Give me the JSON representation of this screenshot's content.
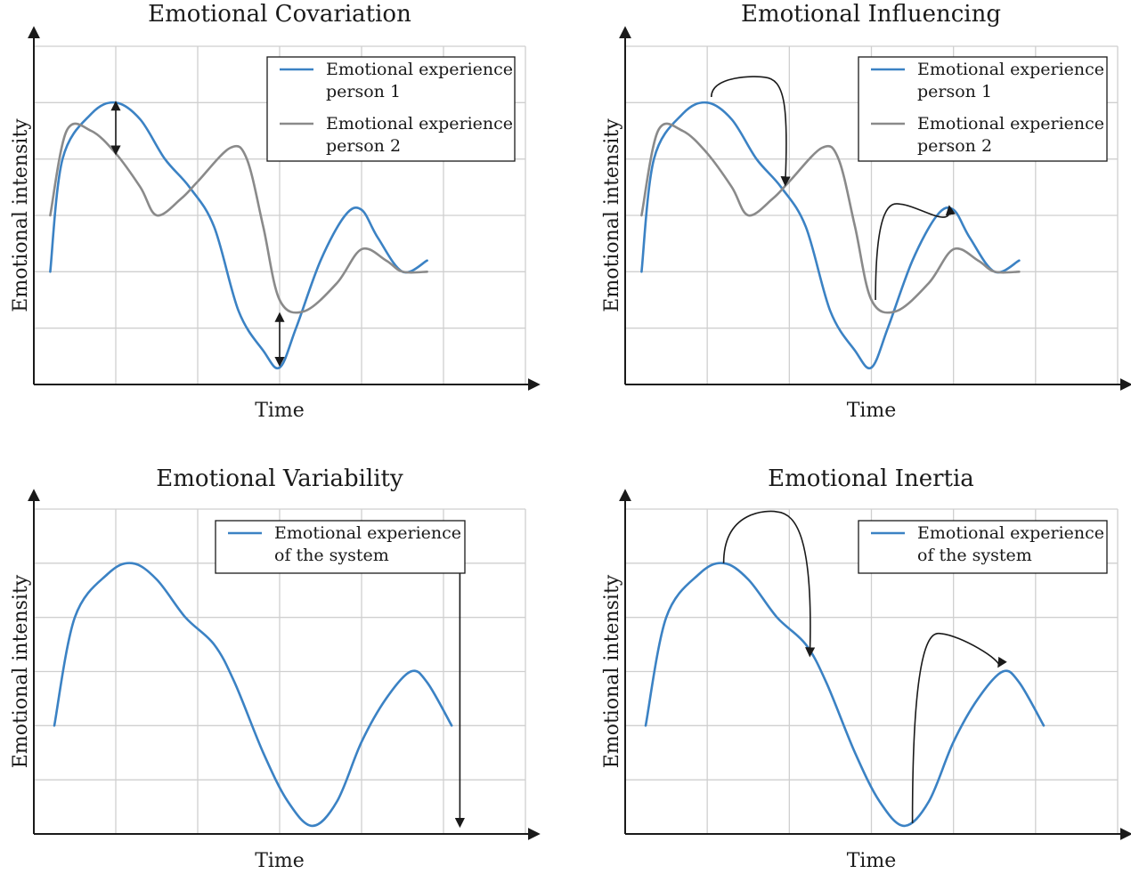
{
  "colors": {
    "person1": "#3b82c4",
    "person2": "#8a8a8a",
    "grid": "#cfcfcf",
    "axis": "#1a1a1a"
  },
  "chart_data": [
    {
      "id": "covariation",
      "type": "line",
      "title": "Emotional Covariation",
      "xlabel": "Time",
      "ylabel": "Emotional intensity",
      "xlim": [
        0,
        6
      ],
      "ylim": [
        0,
        6
      ],
      "grid": true,
      "legend_position": "top-right",
      "series": [
        {
          "name_lines": [
            "Emotional experience",
            "person 1"
          ],
          "color": "#3b82c4",
          "points": [
            [
              0.2,
              2.0
            ],
            [
              0.35,
              4.0
            ],
            [
              0.7,
              4.8
            ],
            [
              1.0,
              5.0
            ],
            [
              1.3,
              4.7
            ],
            [
              1.6,
              4.0
            ],
            [
              1.9,
              3.5
            ],
            [
              2.2,
              2.8
            ],
            [
              2.5,
              1.3
            ],
            [
              2.8,
              0.6
            ],
            [
              3.0,
              0.3
            ],
            [
              3.2,
              1.0
            ],
            [
              3.5,
              2.2
            ],
            [
              3.8,
              3.0
            ],
            [
              4.0,
              3.1
            ],
            [
              4.2,
              2.6
            ],
            [
              4.5,
              2.0
            ],
            [
              4.8,
              2.2
            ]
          ]
        },
        {
          "name_lines": [
            "Emotional experience",
            "person 2"
          ],
          "color": "#8a8a8a",
          "points": [
            [
              0.2,
              3.0
            ],
            [
              0.4,
              4.5
            ],
            [
              0.7,
              4.5
            ],
            [
              1.0,
              4.1
            ],
            [
              1.3,
              3.5
            ],
            [
              1.5,
              3.0
            ],
            [
              1.8,
              3.3
            ],
            [
              2.0,
              3.6
            ],
            [
              2.4,
              4.2
            ],
            [
              2.6,
              4.0
            ],
            [
              2.8,
              2.8
            ],
            [
              3.0,
              1.5
            ],
            [
              3.3,
              1.3
            ],
            [
              3.7,
              1.8
            ],
            [
              4.0,
              2.4
            ],
            [
              4.3,
              2.2
            ],
            [
              4.5,
              2.0
            ],
            [
              4.8,
              2.0
            ]
          ]
        }
      ],
      "arrows": [
        {
          "kind": "double",
          "from": [
            1.0,
            5.0
          ],
          "to": [
            1.0,
            4.1
          ]
        },
        {
          "kind": "double",
          "from": [
            3.0,
            1.25
          ],
          "to": [
            3.0,
            0.35
          ]
        }
      ]
    },
    {
      "id": "influencing",
      "type": "line",
      "title": "Emotional Influencing",
      "xlabel": "Time",
      "ylabel": "Emotional intensity",
      "xlim": [
        0,
        6
      ],
      "ylim": [
        0,
        6
      ],
      "grid": true,
      "legend_position": "top-right",
      "series": [
        {
          "name_lines": [
            "Emotional experience",
            "person 1"
          ],
          "color": "#3b82c4",
          "points": [
            [
              0.2,
              2.0
            ],
            [
              0.35,
              4.0
            ],
            [
              0.7,
              4.8
            ],
            [
              1.0,
              5.0
            ],
            [
              1.3,
              4.7
            ],
            [
              1.6,
              4.0
            ],
            [
              1.9,
              3.5
            ],
            [
              2.2,
              2.8
            ],
            [
              2.5,
              1.3
            ],
            [
              2.8,
              0.6
            ],
            [
              3.0,
              0.3
            ],
            [
              3.2,
              1.0
            ],
            [
              3.5,
              2.2
            ],
            [
              3.8,
              3.0
            ],
            [
              4.0,
              3.1
            ],
            [
              4.2,
              2.6
            ],
            [
              4.5,
              2.0
            ],
            [
              4.8,
              2.2
            ]
          ]
        },
        {
          "name_lines": [
            "Emotional experience",
            "person 2"
          ],
          "color": "#8a8a8a",
          "points": [
            [
              0.2,
              3.0
            ],
            [
              0.4,
              4.5
            ],
            [
              0.7,
              4.5
            ],
            [
              1.0,
              4.1
            ],
            [
              1.3,
              3.5
            ],
            [
              1.5,
              3.0
            ],
            [
              1.8,
              3.3
            ],
            [
              2.0,
              3.6
            ],
            [
              2.4,
              4.2
            ],
            [
              2.6,
              4.0
            ],
            [
              2.8,
              2.8
            ],
            [
              3.0,
              1.5
            ],
            [
              3.3,
              1.3
            ],
            [
              3.7,
              1.8
            ],
            [
              4.0,
              2.4
            ],
            [
              4.3,
              2.2
            ],
            [
              4.5,
              2.0
            ],
            [
              4.8,
              2.0
            ]
          ]
        }
      ],
      "arrows": [
        {
          "kind": "curved",
          "from": [
            1.05,
            5.1
          ],
          "peak": [
            1.7,
            5.45
          ],
          "to": [
            1.95,
            3.55
          ]
        },
        {
          "kind": "curved",
          "from": [
            3.05,
            1.5
          ],
          "peak": [
            3.35,
            3.2
          ],
          "to": [
            3.95,
            3.15
          ]
        }
      ]
    },
    {
      "id": "variability",
      "type": "line",
      "title": "Emotional Variability",
      "xlabel": "Time",
      "ylabel": "Emotional intensity",
      "xlim": [
        0,
        6
      ],
      "ylim": [
        0,
        6
      ],
      "grid": true,
      "legend_position": "top-right",
      "series": [
        {
          "name_lines": [
            "Emotional experience",
            "of the system"
          ],
          "color": "#3b82c4",
          "points": [
            [
              0.25,
              2.0
            ],
            [
              0.5,
              4.0
            ],
            [
              0.9,
              4.8
            ],
            [
              1.2,
              5.0
            ],
            [
              1.5,
              4.7
            ],
            [
              1.85,
              4.0
            ],
            [
              2.2,
              3.5
            ],
            [
              2.45,
              2.8
            ],
            [
              2.8,
              1.5
            ],
            [
              3.1,
              0.6
            ],
            [
              3.4,
              0.15
            ],
            [
              3.7,
              0.6
            ],
            [
              4.0,
              1.7
            ],
            [
              4.3,
              2.5
            ],
            [
              4.6,
              3.0
            ],
            [
              4.8,
              2.8
            ],
            [
              5.1,
              2.0
            ]
          ]
        }
      ],
      "arrows": [
        {
          "kind": "double",
          "from": [
            5.2,
            5.0
          ],
          "to": [
            5.2,
            0.15
          ]
        }
      ]
    },
    {
      "id": "inertia",
      "type": "line",
      "title": "Emotional Inertia",
      "xlabel": "Time",
      "ylabel": "Emotional intensity",
      "xlim": [
        0,
        6
      ],
      "ylim": [
        0,
        6
      ],
      "grid": true,
      "legend_position": "top-right",
      "series": [
        {
          "name_lines": [
            "Emotional experience",
            "of the system"
          ],
          "color": "#3b82c4",
          "points": [
            [
              0.25,
              2.0
            ],
            [
              0.5,
              4.0
            ],
            [
              0.9,
              4.8
            ],
            [
              1.2,
              5.0
            ],
            [
              1.5,
              4.7
            ],
            [
              1.85,
              4.0
            ],
            [
              2.2,
              3.5
            ],
            [
              2.45,
              2.8
            ],
            [
              2.8,
              1.5
            ],
            [
              3.1,
              0.6
            ],
            [
              3.4,
              0.15
            ],
            [
              3.7,
              0.6
            ],
            [
              4.0,
              1.7
            ],
            [
              4.3,
              2.5
            ],
            [
              4.6,
              3.0
            ],
            [
              4.8,
              2.8
            ],
            [
              5.1,
              2.0
            ]
          ]
        }
      ],
      "arrows": [
        {
          "kind": "curved",
          "from": [
            1.2,
            5.0
          ],
          "peak": [
            1.85,
            5.95
          ],
          "to": [
            2.25,
            3.3
          ]
        },
        {
          "kind": "curved",
          "from": [
            3.5,
            0.2
          ],
          "peak": [
            3.85,
            3.7
          ],
          "to": [
            4.55,
            3.1
          ]
        }
      ]
    }
  ]
}
